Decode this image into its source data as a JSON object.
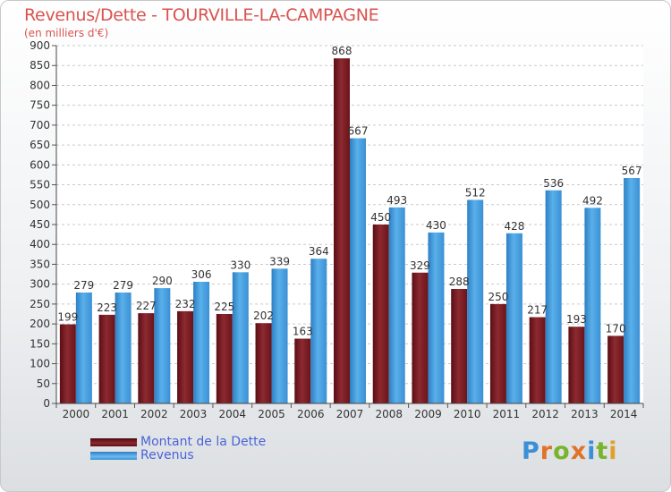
{
  "title": "Revenus/Dette - TOURVILLE-LA-CAMPAGNE",
  "subtitle": "(en milliers d'€)",
  "logo_letters": [
    "P",
    "r",
    "o",
    "x",
    "i",
    "t",
    "i"
  ],
  "colors": {
    "title": "#d9534f",
    "dette": "#7a1e24",
    "revenus": "#4aa3e0",
    "legend_text": "#4a63d8",
    "logo": [
      "#3b8fd6",
      "#e0732a",
      "#79b42c",
      "#e0732a",
      "#3b8fd6",
      "#79b42c",
      "#e0a12a"
    ]
  },
  "chart_data": {
    "type": "bar",
    "title": "Revenus/Dette - TOURVILLE-LA-CAMPAGNE",
    "ylabel": "(en milliers d'€)",
    "xlabel": "",
    "ylim": [
      0,
      900
    ],
    "yticks": [
      0,
      50,
      100,
      150,
      200,
      250,
      300,
      350,
      400,
      450,
      500,
      550,
      600,
      650,
      700,
      750,
      800,
      850,
      900
    ],
    "grid": true,
    "legend_position": "bottom-left",
    "categories": [
      "2000",
      "2001",
      "2002",
      "2003",
      "2004",
      "2005",
      "2006",
      "2007",
      "2008",
      "2009",
      "2010",
      "2011",
      "2012",
      "2013",
      "2014"
    ],
    "series": [
      {
        "name": "Montant de la Dette",
        "values": [
          199,
          223,
          227,
          232,
          225,
          202,
          163,
          868,
          450,
          329,
          288,
          250,
          217,
          193,
          170
        ]
      },
      {
        "name": "Revenus",
        "values": [
          279,
          279,
          290,
          306,
          330,
          339,
          364,
          667,
          493,
          430,
          512,
          428,
          536,
          492,
          567
        ]
      }
    ]
  }
}
